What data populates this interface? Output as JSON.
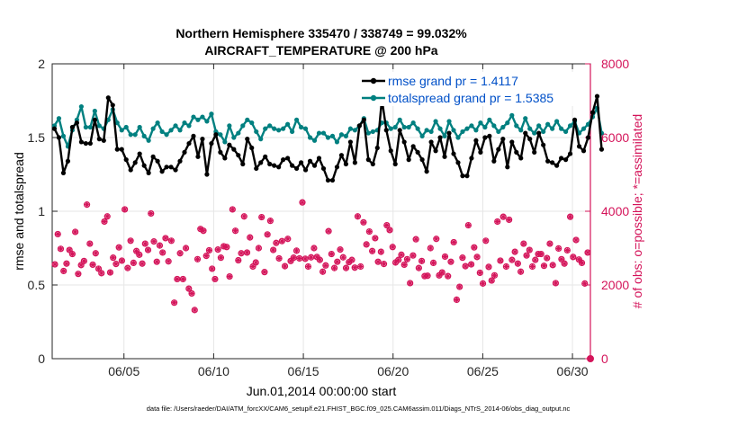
{
  "chart_data": {
    "type": "line",
    "title": "Northern Hemisphere 335470 / 338749 = 99.032%",
    "subtitle": "AIRCRAFT_TEMPERATURE @ 200 hPa",
    "xlabel": "Jun.01,2014 00:00:00 start",
    "ylabel_left": "rmse and totalspread",
    "ylabel_right": "# of obs: o=possible; *=assimilated",
    "footer": "data file: /Users/raeder/DAI/ATM_forcXX/CAM6_setup/f.e21.FHIST_BGC.f09_025.CAM6assim.011/Diags_NTrS_2014-06/obs_diag_output.nc",
    "x_range": [
      1,
      31
    ],
    "ylim_left": [
      0,
      2
    ],
    "ylim_right": [
      0,
      8000
    ],
    "x_ticks": [
      5,
      10,
      15,
      20,
      25,
      30
    ],
    "x_tick_labels": [
      "06/05",
      "06/10",
      "06/15",
      "06/20",
      "06/25",
      "06/30"
    ],
    "y_left_ticks": [
      0,
      0.5,
      1,
      1.5,
      2
    ],
    "y_left_tick_labels": [
      "0",
      "0.5",
      "1",
      "1.5",
      "2"
    ],
    "y_right_ticks": [
      0,
      2000,
      4000,
      6000,
      8000
    ],
    "y_right_tick_labels": [
      "0",
      "2000",
      "4000",
      "6000",
      "8000"
    ],
    "grid": true,
    "legend_location": "top-right",
    "x_step": 0.25,
    "x_start": 1.125,
    "colors": {
      "rmse": "#000000",
      "spread": "#008080",
      "obs": "#d4145a",
      "legend_text": "#0050c8"
    },
    "series": [
      {
        "name": "rmse grand pr = 1.4117",
        "axis": "left",
        "values": [
          1.56,
          1.5,
          1.26,
          1.34,
          1.57,
          1.6,
          1.47,
          1.46,
          1.46,
          1.62,
          1.49,
          1.48,
          1.77,
          1.72,
          1.42,
          1.42,
          1.35,
          1.28,
          1.33,
          1.39,
          1.31,
          1.26,
          1.37,
          1.34,
          1.27,
          1.3,
          1.3,
          1.28,
          1.34,
          1.4,
          1.46,
          1.51,
          1.37,
          1.49,
          1.25,
          1.46,
          1.52,
          1.4,
          1.36,
          1.45,
          1.42,
          1.38,
          1.32,
          1.49,
          1.43,
          1.29,
          1.33,
          1.37,
          1.32,
          1.31,
          1.3,
          1.35,
          1.36,
          1.31,
          1.29,
          1.33,
          1.28,
          1.34,
          1.31,
          1.36,
          1.29,
          1.21,
          1.21,
          1.3,
          1.38,
          1.32,
          1.47,
          1.33,
          1.58,
          1.62,
          1.35,
          1.32,
          1.43,
          1.76,
          1.55,
          1.41,
          1.32,
          1.55,
          1.47,
          1.35,
          1.44,
          1.4,
          1.35,
          1.27,
          1.47,
          1.41,
          1.5,
          1.37,
          1.53,
          1.39,
          1.33,
          1.24,
          1.24,
          1.36,
          1.48,
          1.4,
          1.5,
          1.51,
          1.34,
          1.42,
          1.49,
          1.3,
          1.47,
          1.4,
          1.36,
          1.53,
          1.49,
          1.4,
          1.53,
          1.45,
          1.34,
          1.33,
          1.31,
          1.36,
          1.35,
          1.39,
          1.62,
          1.44,
          1.41,
          1.5,
          1.67,
          1.78,
          1.42
        ]
      },
      {
        "name": "totalspread grand pr = 1.5385",
        "axis": "left",
        "values": [
          1.58,
          1.63,
          1.51,
          1.44,
          1.55,
          1.62,
          1.71,
          1.57,
          1.57,
          1.68,
          1.58,
          1.56,
          1.62,
          1.69,
          1.6,
          1.55,
          1.57,
          1.52,
          1.52,
          1.57,
          1.51,
          1.48,
          1.56,
          1.6,
          1.54,
          1.52,
          1.55,
          1.58,
          1.55,
          1.6,
          1.58,
          1.64,
          1.62,
          1.64,
          1.61,
          1.66,
          1.54,
          1.52,
          1.47,
          1.58,
          1.5,
          1.53,
          1.58,
          1.62,
          1.6,
          1.54,
          1.49,
          1.56,
          1.58,
          1.56,
          1.55,
          1.56,
          1.59,
          1.54,
          1.62,
          1.57,
          1.56,
          1.5,
          1.48,
          1.53,
          1.53,
          1.5,
          1.51,
          1.47,
          1.52,
          1.51,
          1.56,
          1.55,
          1.58,
          1.63,
          1.53,
          1.54,
          1.55,
          1.6,
          1.6,
          1.56,
          1.57,
          1.62,
          1.57,
          1.57,
          1.6,
          1.56,
          1.51,
          1.55,
          1.54,
          1.61,
          1.56,
          1.51,
          1.61,
          1.55,
          1.5,
          1.54,
          1.56,
          1.58,
          1.55,
          1.6,
          1.57,
          1.62,
          1.58,
          1.54,
          1.57,
          1.6,
          1.65,
          1.58,
          1.55,
          1.63,
          1.56,
          1.53,
          1.58,
          1.54,
          1.59,
          1.56,
          1.61,
          1.56,
          1.54,
          1.58,
          1.61,
          1.53,
          1.56,
          1.59,
          1.64,
          1.7,
          1.53
        ]
      },
      {
        "name": "# of obs possible / assimilated",
        "axis": "right",
        "values": [
          2560,
          3380,
          2980,
          2380,
          2580,
          2950,
          2840,
          3440,
          2300,
          2540,
          2650,
          4180,
          3120,
          2550,
          2860,
          2440,
          2320,
          3720,
          3860,
          2340,
          2740,
          2570,
          3020,
          2660,
          4050,
          2460,
          3200,
          2600,
          2920,
          2820,
          2580,
          3120,
          2950,
          3940,
          3180,
          2630,
          3070,
          2880,
          3270,
          2640,
          3200,
          1520,
          2160,
          2860,
          2160,
          3000,
          1900,
          1770,
          1320,
          2700,
          3520,
          3470,
          2790,
          2940,
          2440,
          2160,
          2960,
          2740,
          3050,
          3030,
          2230,
          4050,
          3470,
          2670,
          2860,
          3860,
          2880,
          3290,
          2500,
          2610,
          3000,
          3840,
          2350,
          3370,
          3740,
          2950,
          3140,
          2720,
          3190,
          2510,
          3250,
          2650,
          2740,
          2930,
          2720,
          4240,
          2710,
          2500,
          2750,
          3000,
          2760,
          2680,
          2360,
          2530,
          3460,
          2840,
          2460,
          2630,
          2960,
          2750,
          2460,
          2620,
          2680,
          2470,
          3860,
          2500,
          3700,
          3100,
          3450,
          2920,
          3270,
          2630,
          2900,
          2570,
          3620,
          3490,
          3030,
          2610,
          2680,
          2820,
          2550,
          2700,
          2050,
          2800,
          3240,
          2460,
          2650,
          2240,
          2250,
          3000,
          2600,
          3250,
          2260,
          2340,
          2770,
          2240,
          2630,
          3160,
          1600,
          1950,
          2740,
          2510,
          3620,
          2560,
          3020,
          2760,
          2330,
          2040,
          3200,
          2490,
          2120,
          2260,
          3720,
          2660,
          3850,
          2500,
          3770,
          2680,
          2900,
          2580,
          2360,
          3120,
          2800,
          2950,
          2500,
          2680,
          2840,
          2840,
          2520,
          2730,
          3120,
          2540,
          2050,
          2990,
          2700,
          2580,
          2940,
          3850,
          2760,
          3220,
          2690,
          2600,
          2040,
          2880
        ]
      }
    ]
  }
}
